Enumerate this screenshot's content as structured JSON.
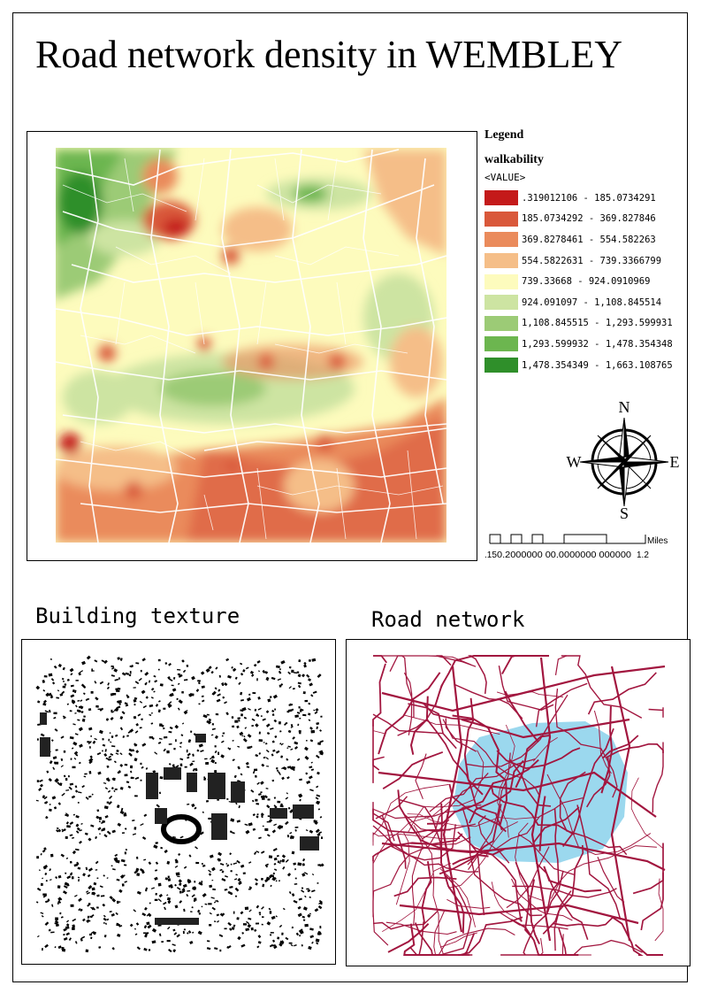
{
  "title": "Road network density in WEMBLEY",
  "legend": {
    "title": "Legend",
    "layer": "walkability",
    "field": "<VALUE>",
    "classes": [
      {
        "label": ".319012106 - 185.0734291",
        "color": "#c41a1a"
      },
      {
        "label": "185.0734292 - 369.827846",
        "color": "#d9583a"
      },
      {
        "label": "369.8278461 - 554.582263",
        "color": "#ea8b5c"
      },
      {
        "label": "554.5822631 - 739.3366799",
        "color": "#f5be88"
      },
      {
        "label": "739.33668 - 924.0910969",
        "color": "#fdfbbd"
      },
      {
        "label": "924.091097 - 1,108.845514",
        "color": "#cde4a2"
      },
      {
        "label": "1,108.845515 - 1,293.599931",
        "color": "#9ccb76"
      },
      {
        "label": "1,293.599932 - 1,478.354348",
        "color": "#6cb64f"
      },
      {
        "label": "1,478.354349 - 1,663.108765",
        "color": "#2f8f2a"
      }
    ]
  },
  "north_arrow": {
    "n": "N",
    "s": "S",
    "e": "E",
    "w": "W"
  },
  "scale_bar": {
    "unit": "Miles",
    "start": ".15",
    "ticks": "0.2000000 00.0000000 000000",
    "end": "1.2"
  },
  "panels": {
    "building": {
      "title": "Building texture"
    },
    "road": {
      "title": "Road network",
      "road_color": "#a2163f",
      "highlight_color": "#9bd8ee"
    }
  }
}
